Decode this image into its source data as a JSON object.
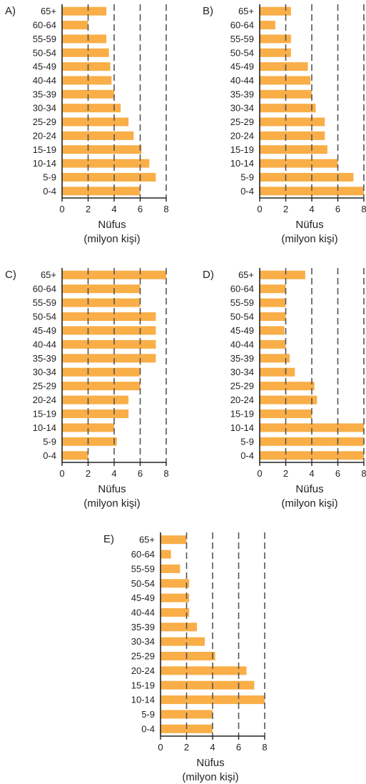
{
  "axis": {
    "xlabel_line1": "Nüfus",
    "xlabel_line2": "(milyon kişi)"
  },
  "colors": {
    "bar": "#f9ae47",
    "axis": "#222222",
    "grid": "#555555"
  },
  "chart_data": [
    {
      "type": "bar",
      "orientation": "horizontal",
      "panel_label": "A)",
      "categories": [
        "0-4",
        "5-9",
        "10-14",
        "15-19",
        "20-24",
        "25-29",
        "30-34",
        "35-39",
        "40-44",
        "45-49",
        "50-54",
        "55-59",
        "60-64",
        "65+"
      ],
      "values": [
        6.0,
        7.2,
        6.7,
        6.1,
        5.5,
        5.1,
        4.5,
        4.0,
        3.8,
        3.7,
        3.6,
        3.4,
        2.0,
        3.4
      ],
      "xlim": [
        0,
        8
      ],
      "xticks": [
        "0",
        "2",
        "4",
        "6",
        "8"
      ],
      "xlabel": "Nüfus (milyon kişi)",
      "grid": "vertical dashed"
    },
    {
      "type": "bar",
      "orientation": "horizontal",
      "panel_label": "B)",
      "categories": [
        "0-4",
        "5-9",
        "10-14",
        "15-19",
        "20-24",
        "25-29",
        "30-34",
        "35-39",
        "40-44",
        "45-49",
        "50-54",
        "55-59",
        "60-64",
        "65+"
      ],
      "values": [
        8.0,
        7.2,
        6.0,
        5.2,
        5.0,
        5.0,
        4.3,
        4.0,
        3.9,
        3.7,
        2.4,
        2.4,
        1.2,
        2.4
      ],
      "xlim": [
        0,
        8
      ],
      "xticks": [
        "0",
        "2",
        "4",
        "6",
        "8"
      ],
      "xlabel": "Nüfus (milyon kişi)",
      "grid": "vertical dashed"
    },
    {
      "type": "bar",
      "orientation": "horizontal",
      "panel_label": "C)",
      "categories": [
        "0-4",
        "5-9",
        "10-14",
        "15-19",
        "20-24",
        "25-29",
        "30-34",
        "35-39",
        "40-44",
        "45-49",
        "50-54",
        "55-59",
        "60-64",
        "65+"
      ],
      "values": [
        2.0,
        4.2,
        4.0,
        5.1,
        5.1,
        6.0,
        6.0,
        7.2,
        7.2,
        7.2,
        7.2,
        6.0,
        6.0,
        8.0
      ],
      "xlim": [
        0,
        8
      ],
      "xticks": [
        "0",
        "2",
        "4",
        "6",
        "8"
      ],
      "xlabel": "Nüfus (milyon kişi)",
      "grid": "vertical dashed"
    },
    {
      "type": "bar",
      "orientation": "horizontal",
      "panel_label": "D)",
      "categories": [
        "0-4",
        "5-9",
        "10-14",
        "15-19",
        "20-24",
        "25-29",
        "30-34",
        "35-39",
        "40-44",
        "45-49",
        "50-54",
        "55-59",
        "60-64",
        "65+"
      ],
      "values": [
        8.0,
        8.0,
        8.0,
        4.0,
        4.4,
        4.2,
        2.7,
        2.3,
        2.0,
        1.9,
        2.0,
        2.0,
        2.0,
        3.5
      ],
      "xlim": [
        0,
        8
      ],
      "xticks": [
        "0",
        "2",
        "4",
        "6",
        "8"
      ],
      "xlabel": "Nüfus (milyon kişi)",
      "grid": "vertical dashed"
    },
    {
      "type": "bar",
      "orientation": "horizontal",
      "panel_label": "E)",
      "categories": [
        "0-4",
        "5-9",
        "10-14",
        "15-19",
        "20-24",
        "25-29",
        "30-34",
        "35-39",
        "40-44",
        "45-49",
        "50-54",
        "55-59",
        "60-64",
        "65+"
      ],
      "values": [
        4.0,
        4.0,
        8.0,
        7.2,
        6.6,
        4.2,
        3.4,
        2.8,
        2.2,
        2.2,
        2.2,
        1.5,
        0.8,
        2.0
      ],
      "xlim": [
        0,
        8
      ],
      "xticks": [
        "0",
        "2",
        "4",
        "6",
        "8"
      ],
      "xlabel": "Nüfus (milyon kişi)",
      "grid": "vertical dashed"
    }
  ]
}
